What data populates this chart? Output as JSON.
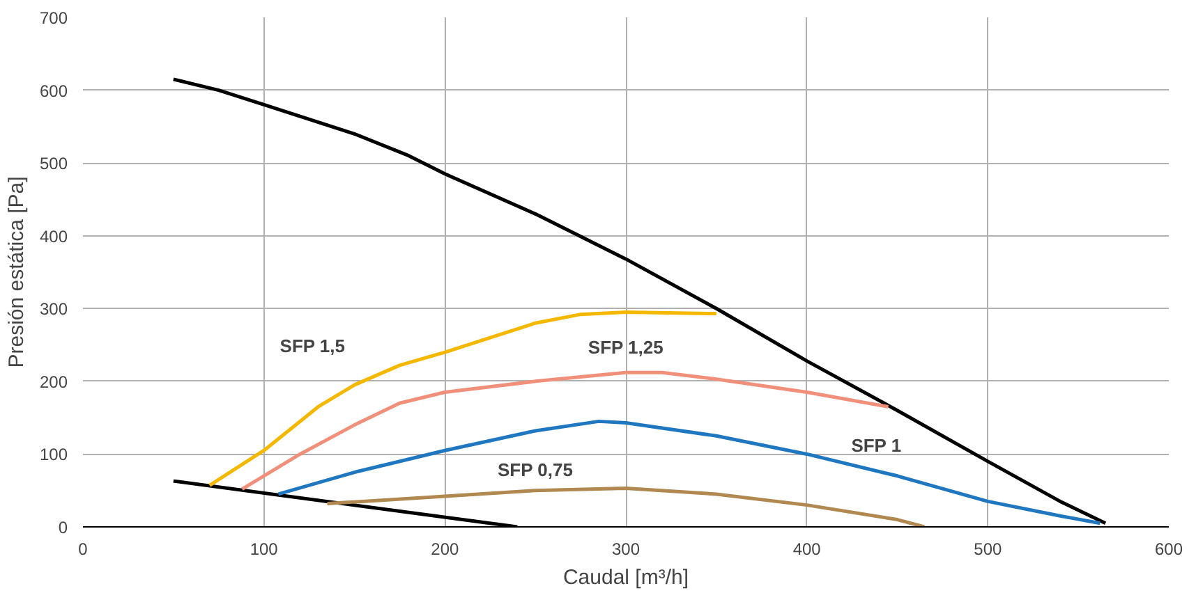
{
  "chart_data": {
    "type": "line",
    "xlabel": "Caudal [m³/h]",
    "ylabel": "Presión estática [Pa]",
    "xlim": [
      0,
      600
    ],
    "ylim": [
      0,
      700
    ],
    "xticks": [
      0,
      100,
      200,
      300,
      400,
      500,
      600
    ],
    "yticks": [
      0,
      100,
      200,
      300,
      400,
      500,
      600,
      700
    ],
    "grid": true,
    "marker": "none",
    "line_style": "solid",
    "series": [
      {
        "color": "#000000",
        "x": [
          50,
          75,
          100,
          150,
          180,
          200,
          250,
          300,
          350,
          400,
          450,
          500,
          540,
          565
        ],
        "values": [
          615,
          600,
          580,
          540,
          510,
          485,
          430,
          368,
          300,
          228,
          160,
          90,
          35,
          5
        ]
      },
      {
        "color": "#000000",
        "x": [
          50,
          240
        ],
        "values": [
          63,
          0
        ]
      },
      {
        "name": "SFP 1,5",
        "color": "#f5b800",
        "x": [
          70,
          100,
          130,
          150,
          175,
          200,
          250,
          275,
          300,
          350
        ],
        "values": [
          57,
          105,
          165,
          195,
          222,
          240,
          280,
          292,
          295,
          293
        ]
      },
      {
        "name": "SFP 1,25",
        "color": "#f0907a",
        "x": [
          88,
          120,
          150,
          175,
          200,
          250,
          300,
          320,
          350,
          400,
          445
        ],
        "values": [
          52,
          100,
          140,
          170,
          185,
          200,
          212,
          212,
          203,
          185,
          165
        ]
      },
      {
        "name": "SFP 1",
        "color": "#1f77c0",
        "x": [
          108,
          150,
          200,
          250,
          285,
          300,
          350,
          400,
          450,
          500,
          540,
          562
        ],
        "values": [
          45,
          75,
          105,
          132,
          145,
          143,
          125,
          100,
          70,
          35,
          15,
          5
        ]
      },
      {
        "name": "SFP 0,75",
        "color": "#b08850",
        "x": [
          135,
          200,
          250,
          300,
          350,
          400,
          450,
          465
        ],
        "values": [
          32,
          42,
          50,
          53,
          45,
          30,
          10,
          0
        ]
      }
    ]
  }
}
